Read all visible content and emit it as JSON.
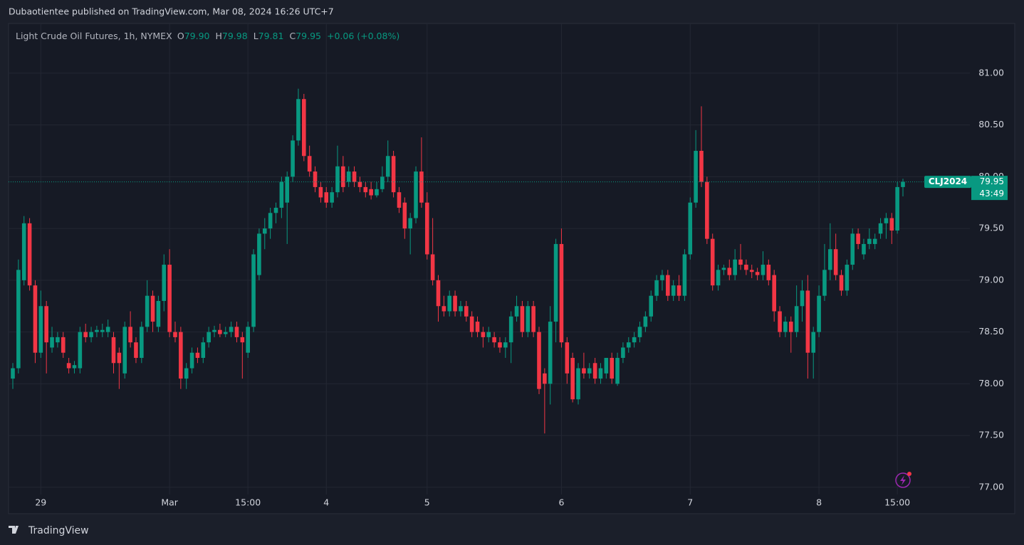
{
  "header": "Dubaotientee published on TradingView.com, Mar 08, 2024 16:26 UTC+7",
  "footer": "TradingView",
  "chart_data": {
    "type": "candlestick",
    "legend": {
      "title": "Light Crude Oil Futures, 1h, NYMEX",
      "o_label": "O",
      "o": "79.90",
      "h_label": "H",
      "h": "79.98",
      "l_label": "L",
      "l": "79.81",
      "c_label": "C",
      "c": "79.95",
      "change": "+0.06 (+0.08%)"
    },
    "up_color": "#089981",
    "down_color": "#f23645",
    "grid": true,
    "ylim": [
      76.745,
      81.48
    ],
    "yticks": [
      {
        "value": 77,
        "label": "77.00"
      },
      {
        "value": 77.5,
        "label": "77.50"
      },
      {
        "value": 78,
        "label": "78.00"
      },
      {
        "value": 78.5,
        "label": "78.50"
      },
      {
        "value": 79,
        "label": "79.00"
      },
      {
        "value": 79.5,
        "label": "79.50"
      },
      {
        "value": 80,
        "label": "80.00"
      },
      {
        "value": 80.5,
        "label": "80.50"
      },
      {
        "value": 81,
        "label": "81.00"
      }
    ],
    "last_price": {
      "symbol": "CLJ2024",
      "value": 79.95,
      "label": "79.95",
      "countdown": "43:49"
    },
    "categories": [
      null,
      null,
      null,
      null,
      null,
      "29",
      null,
      null,
      null,
      null,
      null,
      null,
      null,
      null,
      null,
      null,
      null,
      null,
      null,
      null,
      null,
      null,
      null,
      null,
      null,
      null,
      null,
      null,
      "Mar",
      null,
      null,
      null,
      null,
      null,
      null,
      null,
      null,
      null,
      null,
      null,
      null,
      null,
      "15:00",
      null,
      null,
      null,
      null,
      null,
      null,
      null,
      null,
      null,
      null,
      null,
      null,
      null,
      "4",
      null,
      null,
      null,
      null,
      null,
      null,
      null,
      null,
      null,
      null,
      null,
      null,
      null,
      null,
      null,
      null,
      null,
      "5",
      null,
      null,
      null,
      null,
      null,
      null,
      null,
      null,
      null,
      null,
      null,
      null,
      null,
      null,
      null,
      null,
      null,
      null,
      null,
      null,
      null,
      null,
      null,
      "6",
      null,
      null,
      null,
      null,
      null,
      null,
      null,
      null,
      null,
      null,
      null,
      null,
      null,
      null,
      null,
      null,
      null,
      null,
      null,
      null,
      null,
      null,
      "7",
      null,
      null,
      null,
      null,
      null,
      null,
      null,
      null,
      null,
      null,
      null,
      null,
      null,
      null,
      null,
      null,
      null,
      null,
      null,
      null,
      null,
      null,
      "8",
      null,
      null,
      null,
      null,
      null,
      null,
      null,
      null,
      null,
      null,
      null,
      null,
      null,
      "15:00",
      null
    ],
    "ohlc": [
      [
        78.05,
        78.2,
        77.95,
        78.15
      ],
      [
        78.15,
        79.2,
        78.1,
        79.1
      ],
      [
        79.0,
        79.62,
        78.95,
        79.55
      ],
      [
        79.55,
        79.6,
        78.9,
        78.95
      ],
      [
        78.95,
        79.0,
        78.2,
        78.3
      ],
      [
        78.3,
        78.9,
        78.25,
        78.75
      ],
      [
        78.75,
        78.8,
        78.1,
        78.4
      ],
      [
        78.35,
        78.55,
        78.3,
        78.45
      ],
      [
        78.4,
        78.5,
        78.35,
        78.45
      ],
      [
        78.45,
        78.5,
        78.25,
        78.3
      ],
      [
        78.2,
        78.25,
        78.1,
        78.15
      ],
      [
        78.15,
        78.22,
        78.1,
        78.18
      ],
      [
        78.15,
        78.55,
        78.1,
        78.5
      ],
      [
        78.5,
        78.58,
        78.4,
        78.45
      ],
      [
        78.45,
        78.55,
        78.4,
        78.5
      ],
      [
        78.5,
        78.56,
        78.45,
        78.52
      ],
      [
        78.5,
        78.58,
        78.45,
        78.52
      ],
      [
        78.5,
        78.62,
        78.45,
        78.55
      ],
      [
        78.45,
        78.5,
        78.1,
        78.2
      ],
      [
        78.3,
        78.35,
        77.95,
        78.2
      ],
      [
        78.1,
        78.6,
        78.05,
        78.55
      ],
      [
        78.55,
        78.7,
        78.35,
        78.4
      ],
      [
        78.4,
        78.45,
        78.2,
        78.25
      ],
      [
        78.25,
        78.6,
        78.2,
        78.55
      ],
      [
        78.55,
        79.0,
        78.5,
        78.85
      ],
      [
        78.85,
        78.9,
        78.5,
        78.6
      ],
      [
        78.55,
        78.85,
        78.5,
        78.8
      ],
      [
        78.8,
        79.25,
        78.7,
        79.15
      ],
      [
        79.15,
        79.3,
        78.45,
        78.5
      ],
      [
        78.5,
        78.6,
        78.4,
        78.45
      ],
      [
        78.5,
        78.55,
        77.95,
        78.05
      ],
      [
        78.05,
        78.2,
        77.95,
        78.15
      ],
      [
        78.15,
        78.35,
        78.1,
        78.3
      ],
      [
        78.3,
        78.35,
        78.2,
        78.25
      ],
      [
        78.25,
        78.45,
        78.2,
        78.4
      ],
      [
        78.4,
        78.55,
        78.35,
        78.5
      ],
      [
        78.5,
        78.56,
        78.45,
        78.52
      ],
      [
        78.52,
        78.58,
        78.45,
        78.48
      ],
      [
        78.48,
        78.55,
        78.45,
        78.5
      ],
      [
        78.5,
        78.6,
        78.45,
        78.55
      ],
      [
        78.55,
        78.6,
        78.4,
        78.45
      ],
      [
        78.45,
        78.5,
        78.05,
        78.4
      ],
      [
        78.3,
        78.6,
        78.25,
        78.55
      ],
      [
        78.55,
        79.3,
        78.5,
        79.25
      ],
      [
        79.05,
        79.5,
        79.0,
        79.45
      ],
      [
        79.45,
        79.6,
        79.3,
        79.5
      ],
      [
        79.5,
        79.7,
        79.4,
        79.65
      ],
      [
        79.65,
        79.75,
        79.55,
        79.7
      ],
      [
        79.7,
        80.0,
        79.6,
        79.95
      ],
      [
        79.75,
        80.05,
        79.35,
        80.0
      ],
      [
        80.0,
        80.4,
        79.95,
        80.35
      ],
      [
        80.35,
        80.85,
        80.3,
        80.75
      ],
      [
        80.75,
        80.8,
        80.15,
        80.2
      ],
      [
        80.2,
        80.3,
        80.0,
        80.05
      ],
      [
        80.05,
        80.1,
        79.85,
        79.9
      ],
      [
        79.9,
        79.95,
        79.75,
        79.8
      ],
      [
        79.85,
        79.9,
        79.7,
        79.75
      ],
      [
        79.75,
        79.9,
        79.7,
        79.85
      ],
      [
        79.85,
        80.3,
        79.8,
        80.1
      ],
      [
        80.1,
        80.2,
        79.85,
        79.9
      ],
      [
        79.95,
        80.1,
        79.9,
        80.05
      ],
      [
        80.05,
        80.1,
        79.9,
        79.95
      ],
      [
        79.95,
        80.0,
        79.85,
        79.9
      ],
      [
        79.9,
        79.95,
        79.8,
        79.85
      ],
      [
        79.88,
        79.95,
        79.78,
        79.82
      ],
      [
        79.82,
        79.95,
        79.8,
        79.88
      ],
      [
        79.88,
        80.1,
        79.85,
        80.0
      ],
      [
        80.0,
        80.35,
        79.95,
        80.2
      ],
      [
        80.2,
        80.25,
        79.8,
        79.85
      ],
      [
        79.85,
        79.9,
        79.65,
        79.7
      ],
      [
        79.75,
        79.8,
        79.4,
        79.5
      ],
      [
        79.5,
        79.65,
        79.25,
        79.6
      ],
      [
        79.6,
        80.1,
        79.55,
        80.05
      ],
      [
        80.05,
        80.38,
        79.7,
        79.75
      ],
      [
        79.75,
        79.85,
        79.2,
        79.25
      ],
      [
        79.25,
        79.6,
        78.95,
        79.0
      ],
      [
        79.0,
        79.05,
        78.6,
        78.75
      ],
      [
        78.75,
        78.85,
        78.65,
        78.7
      ],
      [
        78.7,
        78.9,
        78.65,
        78.85
      ],
      [
        78.85,
        78.9,
        78.65,
        78.7
      ],
      [
        78.7,
        78.8,
        78.65,
        78.75
      ],
      [
        78.75,
        78.8,
        78.6,
        78.65
      ],
      [
        78.65,
        78.7,
        78.45,
        78.5
      ],
      [
        78.6,
        78.65,
        78.45,
        78.5
      ],
      [
        78.5,
        78.55,
        78.35,
        78.45
      ],
      [
        78.45,
        78.55,
        78.4,
        78.5
      ],
      [
        78.45,
        78.5,
        78.35,
        78.4
      ],
      [
        78.4,
        78.45,
        78.3,
        78.35
      ],
      [
        78.35,
        78.45,
        78.25,
        78.4
      ],
      [
        78.4,
        78.7,
        78.2,
        78.65
      ],
      [
        78.65,
        78.85,
        78.6,
        78.75
      ],
      [
        78.75,
        78.8,
        78.45,
        78.5
      ],
      [
        78.5,
        78.8,
        78.45,
        78.75
      ],
      [
        78.75,
        78.8,
        78.45,
        78.5
      ],
      [
        78.5,
        78.55,
        77.9,
        77.95
      ],
      [
        78.1,
        78.15,
        77.52,
        78.0
      ],
      [
        78.0,
        78.75,
        77.8,
        78.6
      ],
      [
        78.6,
        79.4,
        78.4,
        79.35
      ],
      [
        79.35,
        79.5,
        78.35,
        78.4
      ],
      [
        78.4,
        78.45,
        78.0,
        78.1
      ],
      [
        78.25,
        78.3,
        77.82,
        77.85
      ],
      [
        77.85,
        78.2,
        77.8,
        78.15
      ],
      [
        78.15,
        78.3,
        78.05,
        78.1
      ],
      [
        78.1,
        78.2,
        78.05,
        78.15
      ],
      [
        78.2,
        78.25,
        78.0,
        78.05
      ],
      [
        78.05,
        78.2,
        78.0,
        78.15
      ],
      [
        78.1,
        78.25,
        78.05,
        78.25
      ],
      [
        78.25,
        78.3,
        78.0,
        78.05
      ],
      [
        78.0,
        78.3,
        77.98,
        78.25
      ],
      [
        78.25,
        78.4,
        78.2,
        78.35
      ],
      [
        78.35,
        78.45,
        78.3,
        78.4
      ],
      [
        78.4,
        78.5,
        78.35,
        78.45
      ],
      [
        78.45,
        78.6,
        78.4,
        78.55
      ],
      [
        78.55,
        78.7,
        78.5,
        78.65
      ],
      [
        78.65,
        78.9,
        78.6,
        78.85
      ],
      [
        78.85,
        79.05,
        78.8,
        79.0
      ],
      [
        79.0,
        79.1,
        78.9,
        79.05
      ],
      [
        79.05,
        79.1,
        78.8,
        78.85
      ],
      [
        78.85,
        79.0,
        78.8,
        78.95
      ],
      [
        78.95,
        79.05,
        78.8,
        78.85
      ],
      [
        78.85,
        79.3,
        78.8,
        79.25
      ],
      [
        79.25,
        79.8,
        79.2,
        79.75
      ],
      [
        79.75,
        80.45,
        79.7,
        80.25
      ],
      [
        80.25,
        80.68,
        79.9,
        79.95
      ],
      [
        79.95,
        80.0,
        79.35,
        79.4
      ],
      [
        79.4,
        79.45,
        78.9,
        78.95
      ],
      [
        78.95,
        79.15,
        78.9,
        79.1
      ],
      [
        79.1,
        79.15,
        79.05,
        79.12
      ],
      [
        79.12,
        79.2,
        79.0,
        79.05
      ],
      [
        79.05,
        79.3,
        79.0,
        79.2
      ],
      [
        79.2,
        79.35,
        79.1,
        79.15
      ],
      [
        79.15,
        79.2,
        79.05,
        79.1
      ],
      [
        79.1,
        79.15,
        79.02,
        79.08
      ],
      [
        79.08,
        79.12,
        79.0,
        79.05
      ],
      [
        79.05,
        79.28,
        79.0,
        79.15
      ],
      [
        79.15,
        79.2,
        78.95,
        79.0
      ],
      [
        79.05,
        79.1,
        78.6,
        78.7
      ],
      [
        78.7,
        78.75,
        78.45,
        78.5
      ],
      [
        78.5,
        78.65,
        78.45,
        78.6
      ],
      [
        78.6,
        78.65,
        78.3,
        78.5
      ],
      [
        78.5,
        78.95,
        78.45,
        78.75
      ],
      [
        78.75,
        79.0,
        78.6,
        78.9
      ],
      [
        78.9,
        79.05,
        78.05,
        78.3
      ],
      [
        78.3,
        78.55,
        78.05,
        78.5
      ],
      [
        78.5,
        78.95,
        78.45,
        78.85
      ],
      [
        78.85,
        79.35,
        78.8,
        79.1
      ],
      [
        79.1,
        79.55,
        79.0,
        79.3
      ],
      [
        79.3,
        79.45,
        79.0,
        79.05
      ],
      [
        79.05,
        79.1,
        78.85,
        78.9
      ],
      [
        78.9,
        79.2,
        78.85,
        79.15
      ],
      [
        79.15,
        79.5,
        79.1,
        79.45
      ],
      [
        79.45,
        79.5,
        79.3,
        79.35
      ],
      [
        79.25,
        79.4,
        79.2,
        79.35
      ],
      [
        79.35,
        79.5,
        79.3,
        79.4
      ],
      [
        79.35,
        79.45,
        79.3,
        79.4
      ],
      [
        79.45,
        79.6,
        79.4,
        79.55
      ],
      [
        79.55,
        79.65,
        79.4,
        79.6
      ],
      [
        79.6,
        79.65,
        79.35,
        79.48
      ],
      [
        79.48,
        79.95,
        79.45,
        79.9
      ],
      [
        79.9,
        79.98,
        79.81,
        79.95
      ]
    ]
  }
}
